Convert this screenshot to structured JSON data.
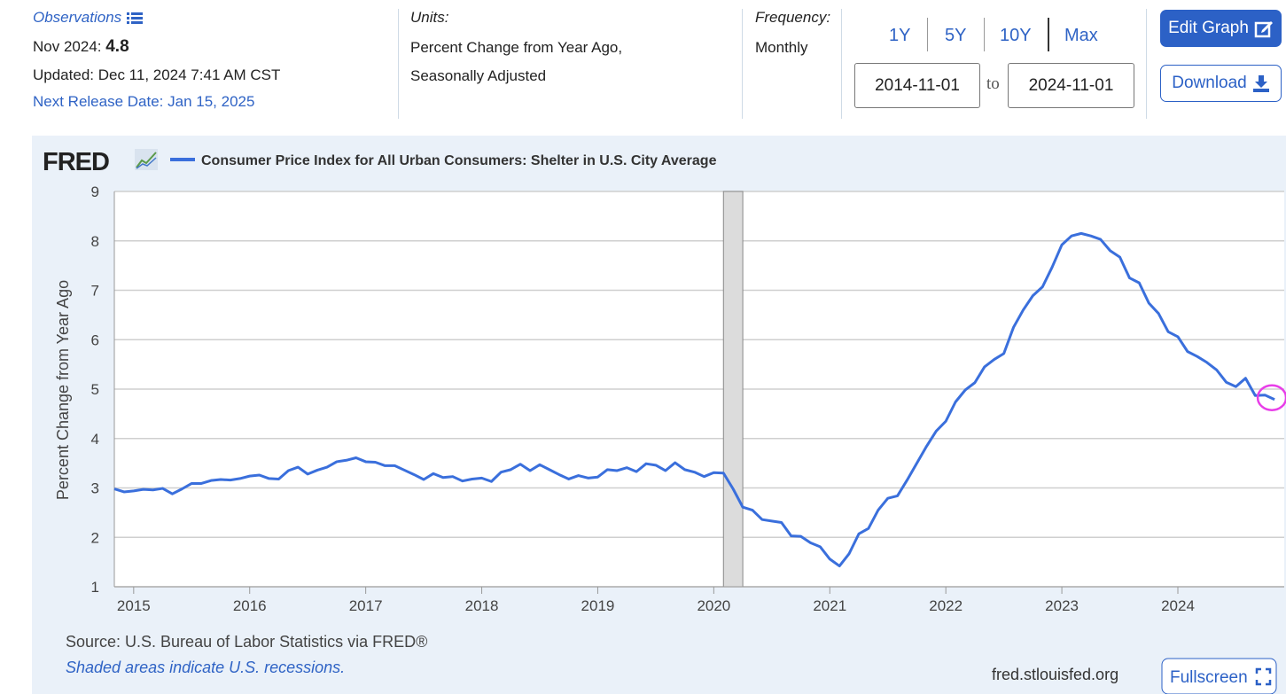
{
  "observations": {
    "label": "Observations",
    "period": "Nov 2024:",
    "value": 4.8,
    "updated": "Updated: Dec 11, 2024 7:41 AM CST",
    "next_release": "Next Release Date: Jan 15, 2025"
  },
  "units": {
    "label": "Units:",
    "lines": [
      "Percent Change from Year Ago,",
      "Seasonally Adjusted"
    ]
  },
  "frequency": {
    "label": "Frequency:",
    "value": "Monthly"
  },
  "range_buttons": [
    "1Y",
    "5Y",
    "10Y",
    "Max"
  ],
  "date_range": {
    "start": "2014-11-01",
    "separator": "to",
    "end": "2024-11-01"
  },
  "buttons": {
    "edit": "Edit Graph",
    "download": "Download",
    "fullscreen": "Fullscreen"
  },
  "logo": "FRED",
  "footer": {
    "source": "Source: U.S. Bureau of Labor Statistics via FRED®",
    "note": "Shaded areas indicate U.S. recessions.",
    "site": "fred.stlouisfed.org"
  },
  "chart_data": {
    "type": "line",
    "y_label": "Percent Change from Year Ago",
    "x": [
      "2014-11",
      "2014-12",
      "2015-01",
      "2015-02",
      "2015-03",
      "2015-04",
      "2015-05",
      "2015-06",
      "2015-07",
      "2015-08",
      "2015-09",
      "2015-10",
      "2015-11",
      "2015-12",
      "2016-01",
      "2016-02",
      "2016-03",
      "2016-04",
      "2016-05",
      "2016-06",
      "2016-07",
      "2016-08",
      "2016-09",
      "2016-10",
      "2016-11",
      "2016-12",
      "2017-01",
      "2017-02",
      "2017-03",
      "2017-04",
      "2017-05",
      "2017-06",
      "2017-07",
      "2017-08",
      "2017-09",
      "2017-10",
      "2017-11",
      "2017-12",
      "2018-01",
      "2018-02",
      "2018-03",
      "2018-04",
      "2018-05",
      "2018-06",
      "2018-07",
      "2018-08",
      "2018-09",
      "2018-10",
      "2018-11",
      "2018-12",
      "2019-01",
      "2019-02",
      "2019-03",
      "2019-04",
      "2019-05",
      "2019-06",
      "2019-07",
      "2019-08",
      "2019-09",
      "2019-10",
      "2019-11",
      "2019-12",
      "2020-01",
      "2020-02",
      "2020-03",
      "2020-04",
      "2020-05",
      "2020-06",
      "2020-07",
      "2020-08",
      "2020-09",
      "2020-10",
      "2020-11",
      "2020-12",
      "2021-01",
      "2021-02",
      "2021-03",
      "2021-04",
      "2021-05",
      "2021-06",
      "2021-07",
      "2021-08",
      "2021-09",
      "2021-10",
      "2021-11",
      "2021-12",
      "2022-01",
      "2022-02",
      "2022-03",
      "2022-04",
      "2022-05",
      "2022-06",
      "2022-07",
      "2022-08",
      "2022-09",
      "2022-10",
      "2022-11",
      "2022-12",
      "2023-01",
      "2023-02",
      "2023-03",
      "2023-04",
      "2023-05",
      "2023-06",
      "2023-07",
      "2023-08",
      "2023-09",
      "2023-10",
      "2023-11",
      "2023-12",
      "2024-01",
      "2024-02",
      "2024-03",
      "2024-04",
      "2024-05",
      "2024-06",
      "2024-07",
      "2024-08",
      "2024-09",
      "2024-10",
      "2024-11"
    ],
    "series": [
      {
        "name": "Consumer Price Index for All Urban Consumers: Shelter in U.S. City Average",
        "color": "#3a6fdc",
        "values": [
          2.98,
          2.92,
          2.94,
          2.97,
          2.96,
          2.99,
          2.88,
          2.98,
          3.09,
          3.09,
          3.15,
          3.17,
          3.16,
          3.19,
          3.24,
          3.26,
          3.19,
          3.18,
          3.35,
          3.42,
          3.28,
          3.36,
          3.42,
          3.53,
          3.56,
          3.61,
          3.53,
          3.52,
          3.45,
          3.45,
          3.36,
          3.27,
          3.17,
          3.29,
          3.21,
          3.23,
          3.14,
          3.18,
          3.2,
          3.13,
          3.32,
          3.37,
          3.48,
          3.35,
          3.47,
          3.37,
          3.27,
          3.18,
          3.25,
          3.2,
          3.22,
          3.37,
          3.35,
          3.41,
          3.33,
          3.49,
          3.46,
          3.35,
          3.51,
          3.37,
          3.32,
          3.23,
          3.31,
          3.3,
          2.98,
          2.61,
          2.55,
          2.36,
          2.33,
          2.3,
          2.03,
          2.02,
          1.89,
          1.81,
          1.56,
          1.42,
          1.67,
          2.07,
          2.18,
          2.55,
          2.79,
          2.84,
          3.16,
          3.5,
          3.84,
          4.15,
          4.35,
          4.74,
          4.98,
          5.13,
          5.45,
          5.6,
          5.72,
          6.25,
          6.6,
          6.89,
          7.07,
          7.47,
          7.92,
          8.1,
          8.15,
          8.1,
          8.03,
          7.8,
          7.67,
          7.25,
          7.15,
          6.74,
          6.53,
          6.16,
          6.06,
          5.76,
          5.66,
          5.54,
          5.39,
          5.14,
          5.05,
          5.22,
          4.87,
          4.88,
          4.79
        ]
      }
    ],
    "recessions": [
      {
        "start": "2020-02",
        "end": "2020-04"
      }
    ],
    "xlim": [
      "2014-11",
      "2024-12"
    ],
    "xticks": [
      "2015",
      "2016",
      "2017",
      "2018",
      "2019",
      "2020",
      "2021",
      "2022",
      "2023",
      "2024"
    ],
    "ylim": [
      1,
      9
    ],
    "yticks": [
      1,
      2,
      3,
      4,
      5,
      6,
      7,
      8,
      9
    ],
    "grid": true
  }
}
